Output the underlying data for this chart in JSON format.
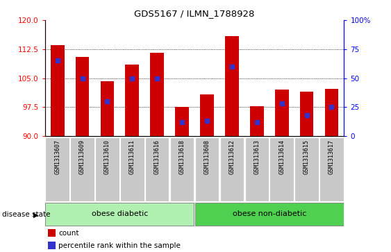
{
  "title": "GDS5167 / ILMN_1788928",
  "samples": [
    "GSM1313607",
    "GSM1313609",
    "GSM1313610",
    "GSM1313611",
    "GSM1313616",
    "GSM1313618",
    "GSM1313608",
    "GSM1313612",
    "GSM1313613",
    "GSM1313614",
    "GSM1313615",
    "GSM1313617"
  ],
  "counts": [
    113.5,
    110.5,
    104.2,
    108.5,
    111.5,
    97.5,
    100.8,
    115.8,
    97.8,
    102.0,
    101.5,
    102.3
  ],
  "percentile_ranks": [
    65,
    50,
    30,
    50,
    50,
    12,
    13,
    60,
    12,
    28,
    18,
    25
  ],
  "ymin": 90,
  "ymax": 120,
  "yticks": [
    90,
    97.5,
    105,
    112.5,
    120
  ],
  "y2min": 0,
  "y2max": 100,
  "y2ticks": [
    0,
    25,
    50,
    75,
    100
  ],
  "bar_color": "#cc0000",
  "dot_color": "#3333cc",
  "group1_label": "obese diabetic",
  "group2_label": "obese non-diabetic",
  "group1_count": 6,
  "group2_count": 6,
  "disease_label": "disease state",
  "group_color1": "#b0f0b0",
  "group_color2": "#50d050",
  "tick_bg_color": "#c8c8c8",
  "legend_count": "count",
  "legend_pct": "percentile rank within the sample",
  "fig_width": 5.63,
  "fig_height": 3.63,
  "dpi": 100
}
